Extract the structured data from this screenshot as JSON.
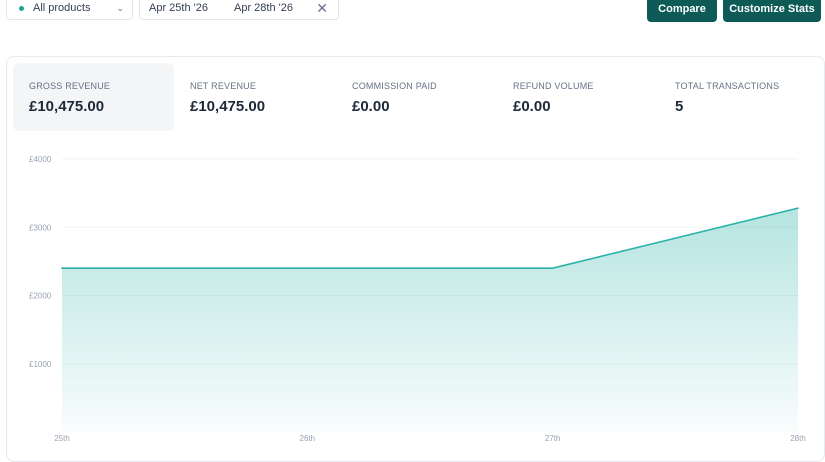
{
  "toolbar": {
    "product_filter": "All products",
    "date_start": "Apr 25th '26",
    "date_end": "Apr 28th '26",
    "compare_label": "Compare",
    "customize_label": "Customize Stats",
    "status_color": "#17a398",
    "button_color": "#0d5a57"
  },
  "stats": [
    {
      "label": "GROSS REVENUE",
      "value": "£10,475.00",
      "active": true
    },
    {
      "label": "NET REVENUE",
      "value": "£10,475.00",
      "active": false
    },
    {
      "label": "COMMISSION PAID",
      "value": "£0.00",
      "active": false
    },
    {
      "label": "REFUND VOLUME",
      "value": "£0.00",
      "active": false
    },
    {
      "label": "TOTAL TRANSACTIONS",
      "value": "5",
      "active": false
    }
  ],
  "chart_data": {
    "type": "area",
    "x": [
      "25th",
      "26th",
      "27th",
      "28th"
    ],
    "series": [
      {
        "values": [
          2400,
          2400,
          2400,
          3280
        ]
      }
    ],
    "yticks": [
      "£4000",
      "£3000",
      "£2000",
      "£1000"
    ],
    "ylim": [
      0,
      4000
    ],
    "grid": true,
    "line_color": "#2bb3a8"
  }
}
